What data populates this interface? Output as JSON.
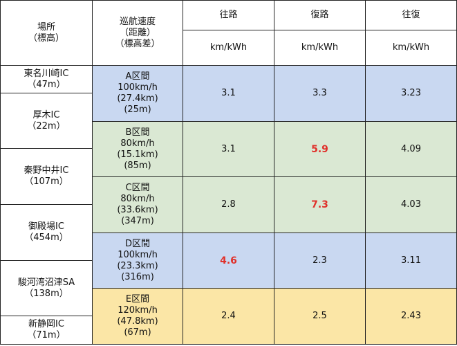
{
  "highlight_color": "#e0302a",
  "header": {
    "location": [
      "場所",
      "（標高）"
    ],
    "speed": [
      "巡航速度",
      "（距離）",
      "（標高差）"
    ],
    "directions": [
      "往路",
      "復路",
      "往復"
    ],
    "units": [
      "km/kWh",
      "km/kWh",
      "km/kWh"
    ]
  },
  "locations": [
    [
      "東名川崎IC",
      "（47m）"
    ],
    [
      "厚木IC",
      "（22m）"
    ],
    [
      "秦野中井IC",
      "（107m）"
    ],
    [
      "御殿場IC",
      "（454m）"
    ],
    [
      "駿河湾沼津SA",
      "（138m）"
    ],
    [
      "新静岡IC",
      "（71m）"
    ]
  ],
  "sections": [
    {
      "info": [
        "A区間",
        "100km/h",
        "(27.4km)",
        "(25m)"
      ],
      "values": [
        "3.1",
        "3.3",
        "3.23"
      ],
      "highlight": []
    },
    {
      "info": [
        "B区間",
        "80km/h",
        "(15.1km)",
        "(85m)"
      ],
      "values": [
        "3.1",
        "5.9",
        "4.09"
      ],
      "highlight": [
        1
      ]
    },
    {
      "info": [
        "C区間",
        "80km/h",
        "(33.6km)",
        "(347m)"
      ],
      "values": [
        "2.8",
        "7.3",
        "4.03"
      ],
      "highlight": [
        1
      ]
    },
    {
      "info": [
        "D区間",
        "100km/h",
        "(23.3km)",
        "(316m)"
      ],
      "values": [
        "4.6",
        "2.3",
        "3.11"
      ],
      "highlight": [
        0
      ]
    },
    {
      "info": [
        "E区間",
        "120km/h",
        "(47.8km)",
        "(67m)"
      ],
      "values": [
        "2.4",
        "2.5",
        "2.43"
      ],
      "highlight": []
    }
  ]
}
